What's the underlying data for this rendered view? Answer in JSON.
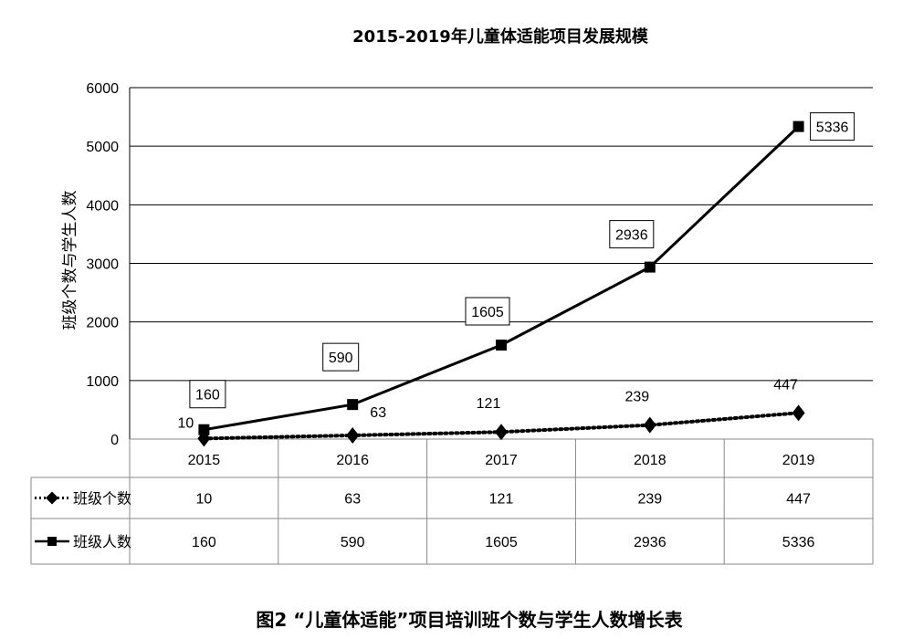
{
  "chart_data": {
    "type": "line",
    "title": "2015-2019年儿童体适能项目发展规模",
    "caption": "图2 “儿童体适能”项目培训班个数与学生人数增长表",
    "ylabel": "班级个数与学生人数",
    "xlabel": "",
    "categories": [
      "2015",
      "2016",
      "2017",
      "2018",
      "2019"
    ],
    "ylim": [
      0,
      6000
    ],
    "yticks": [
      0,
      1000,
      2000,
      3000,
      4000,
      5000,
      6000
    ],
    "grid": true,
    "legend": "data-table",
    "series": [
      {
        "name": "班级个数",
        "values": [
          10,
          63,
          121,
          239,
          447
        ],
        "line_style": "dotted",
        "marker": "diamond",
        "labels_boxed": false
      },
      {
        "name": "班级人数",
        "values": [
          160,
          590,
          1605,
          2936,
          5336
        ],
        "line_style": "solid",
        "marker": "square",
        "labels_boxed": true
      }
    ],
    "colors": {
      "line": "#000000",
      "grid": "#000000",
      "table_border": "#888888"
    }
  }
}
